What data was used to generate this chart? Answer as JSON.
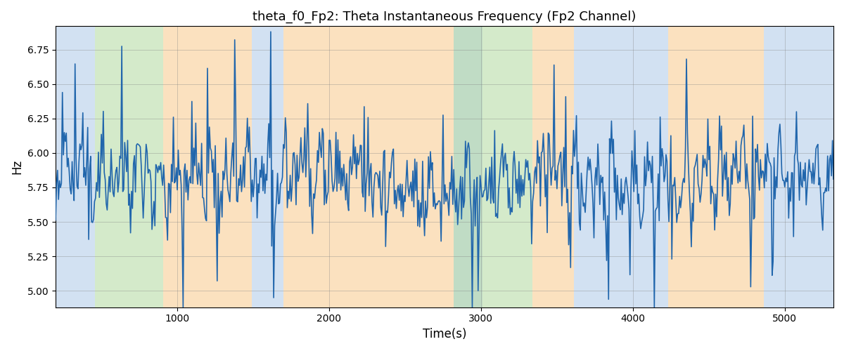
{
  "title": "theta_f0_Fp2: Theta Instantaneous Frequency (Fp2 Channel)",
  "xlabel": "Time(s)",
  "ylabel": "Hz",
  "line_color": "#2166ac",
  "line_width": 1.2,
  "ylim": [
    4.88,
    6.92
  ],
  "xlim": [
    200,
    5320
  ],
  "bg_bands": [
    {
      "xmin": 200,
      "xmax": 460,
      "color": "#adc9e8",
      "alpha": 0.55
    },
    {
      "xmin": 460,
      "xmax": 910,
      "color": "#b2d9a0",
      "alpha": 0.55
    },
    {
      "xmin": 910,
      "xmax": 1490,
      "color": "#f9c98b",
      "alpha": 0.55
    },
    {
      "xmin": 1490,
      "xmax": 1700,
      "color": "#adc9e8",
      "alpha": 0.55
    },
    {
      "xmin": 1700,
      "xmax": 2820,
      "color": "#f9c98b",
      "alpha": 0.55
    },
    {
      "xmin": 2820,
      "xmax": 3010,
      "color": "#adc9e8",
      "alpha": 0.55
    },
    {
      "xmin": 2820,
      "xmax": 3340,
      "color": "#b2d9a0",
      "alpha": 0.55
    },
    {
      "xmin": 3340,
      "xmax": 3610,
      "color": "#f9c98b",
      "alpha": 0.55
    },
    {
      "xmin": 3610,
      "xmax": 4230,
      "color": "#adc9e8",
      "alpha": 0.55
    },
    {
      "xmin": 4230,
      "xmax": 4860,
      "color": "#f9c98b",
      "alpha": 0.55
    },
    {
      "xmin": 4860,
      "xmax": 5320,
      "color": "#adc9e8",
      "alpha": 0.55
    }
  ],
  "yticks": [
    5.0,
    5.25,
    5.5,
    5.75,
    6.0,
    6.25,
    6.5,
    6.75
  ],
  "xticks": [
    1000,
    2000,
    3000,
    4000,
    5000
  ],
  "title_fontsize": 13,
  "label_fontsize": 12,
  "tick_fontsize": 10
}
